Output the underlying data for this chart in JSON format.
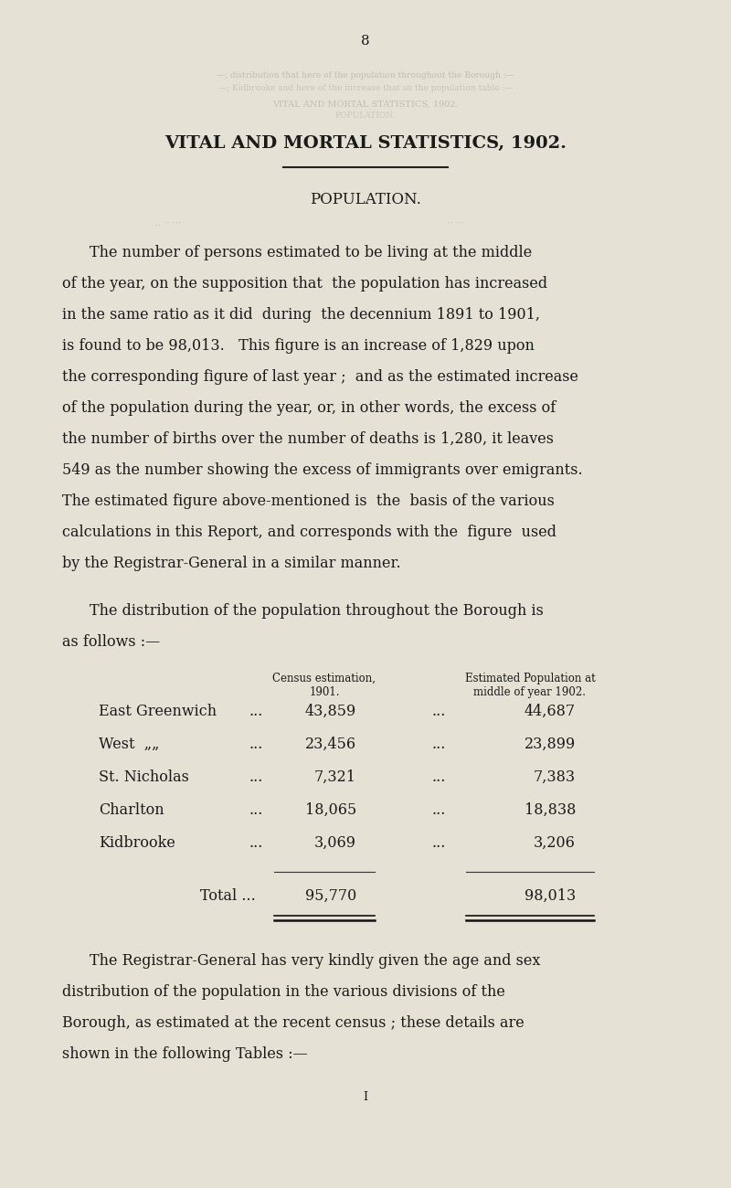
{
  "bg_color": "#e5e1d5",
  "text_color": "#1a1a1a",
  "page_number": "8",
  "title": "VITAL AND MORTAL STATISTICS, 1902.",
  "section": "POPULATION.",
  "para1_lines": [
    "The number of persons estimated to be living at the middle",
    "of the year, on the supposition that  the population has increased",
    "in the same ratio as it did  during  the decennium 1891 to 1901,",
    "is found to be 98,013.   This figure is an increase of 1,829 upon",
    "the corresponding figure of last year ;  and as the estimated increase",
    "of the population during the year, or, in other words, the excess of",
    "the number of births over the number of deaths is 1,280, it leaves",
    "549 as the number showing the excess of immigrants over emigrants.",
    "The estimated figure above-mentioned is  the  basis of the various",
    "calculations in this Report, and corresponds with the  figure  used",
    "by the Registrar-General in a similar manner."
  ],
  "table_intro1": "The distribution of the population throughout the Borough is",
  "table_intro2": "as follows :—",
  "col_header1a": "Census estimation,",
  "col_header1b": "1901.",
  "col_header2a": "Estimated Population at",
  "col_header2b": "middle of year 1902.",
  "table_rows": [
    [
      "East Greenwich",
      "...",
      "43,859",
      "...",
      "44,687"
    ],
    [
      "West  „„",
      "...",
      "23,456",
      "...",
      "23,899"
    ],
    [
      "St. Nicholas",
      "...",
      "7,321",
      "...",
      "7,383"
    ],
    [
      "Charlton",
      "...",
      "18,065",
      "...",
      "18,838"
    ],
    [
      "Kidbrooke",
      "...",
      "3,069",
      "...",
      "3,206"
    ]
  ],
  "total_label": "Total ...",
  "total_c1": "95,770",
  "total_c2": "98,013",
  "para2_lines": [
    "The Registrar-General has very kindly given the age and sex",
    "distribution of the population in the various divisions of the",
    "Borough, as estimated at the recent census ; these details are",
    "shown in the following Tables :—"
  ],
  "ghost_line1": "—; distribution that here of the population throughout the Borough :—",
  "ghost_line2": "—; Kidbrooke and here of the increase that so the population table :—",
  "faded_title": "VITAL AND MORTAL STATISTICS, 1902.",
  "faded_pop": "POPULATION."
}
